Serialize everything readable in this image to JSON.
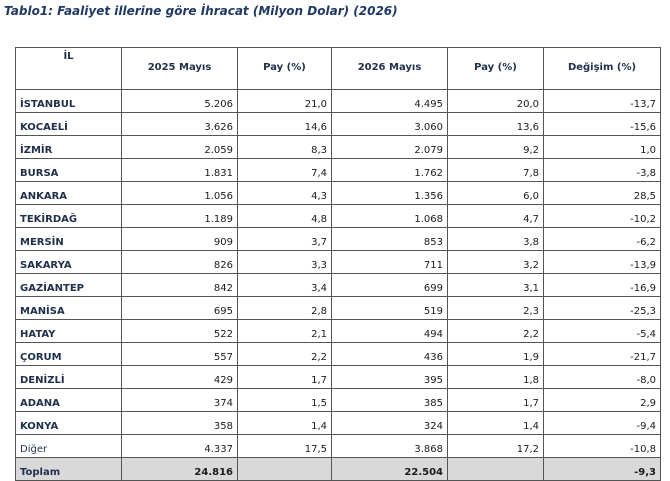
{
  "title": "Tablo1: Faaliyet illerine göre İhracat (Milyon Dolar) (2026)",
  "table": {
    "header": [
      "İL",
      "2025 Mayıs",
      "Pay  (%)",
      "2026 Mayıs",
      "Pay  (%)",
      "Değişim (%)"
    ],
    "rows": [
      [
        "İSTANBUL",
        "5.206",
        "21,0",
        "4.495",
        "20,0",
        "-13,7"
      ],
      [
        "KOCAELİ",
        "3.626",
        "14,6",
        "3.060",
        "13,6",
        "-15,6"
      ],
      [
        "İZMİR",
        "2.059",
        "8,3",
        "2.079",
        "9,2",
        "1,0"
      ],
      [
        "BURSA",
        "1.831",
        "7,4",
        "1.762",
        "7,8",
        "-3,8"
      ],
      [
        "ANKARA",
        "1.056",
        "4,3",
        "1.356",
        "6,0",
        "28,5"
      ],
      [
        "TEKİRDAĞ",
        "1.189",
        "4,8",
        "1.068",
        "4,7",
        "-10,2"
      ],
      [
        "MERSİN",
        "909",
        "3,7",
        "853",
        "3,8",
        "-6,2"
      ],
      [
        "SAKARYA",
        "826",
        "3,3",
        "711",
        "3,2",
        "-13,9"
      ],
      [
        "GAZİANTEP",
        "842",
        "3,4",
        "699",
        "3,1",
        "-16,9"
      ],
      [
        "MANİSA",
        "695",
        "2,8",
        "519",
        "2,3",
        "-25,3"
      ],
      [
        "HATAY",
        "522",
        "2,1",
        "494",
        "2,2",
        "-5,4"
      ],
      [
        "ÇORUM",
        "557",
        "2,2",
        "436",
        "1,9",
        "-21,7"
      ],
      [
        "DENİZLİ",
        "429",
        "1,7",
        "395",
        "1,8",
        "-8,0"
      ],
      [
        "ADANA",
        "374",
        "1,5",
        "385",
        "1,7",
        "2,9"
      ],
      [
        "KONYA",
        "358",
        "1,4",
        "324",
        "1,4",
        "-9,4"
      ],
      [
        "Diğer",
        "4.337",
        "17,5",
        "3.868",
        "17,2",
        "-10,8"
      ]
    ],
    "total": [
      "Toplam",
      "24.816",
      "",
      "22.504",
      "",
      "-9,3"
    ]
  }
}
